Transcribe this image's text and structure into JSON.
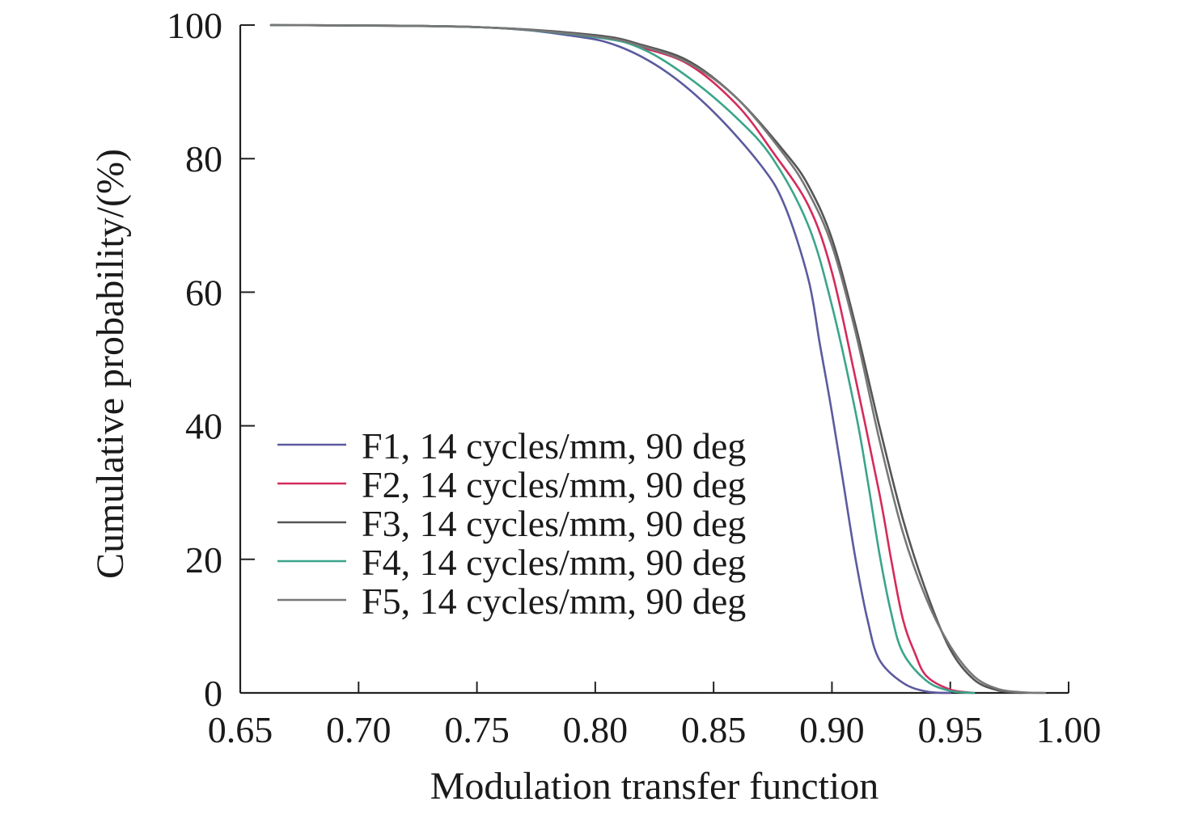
{
  "chart_data": {
    "type": "line",
    "title": "",
    "xlabel": "Modulation transfer function",
    "ylabel": "Cumulative probability/(%)",
    "xlim": [
      0.65,
      1.0
    ],
    "ylim": [
      0,
      100
    ],
    "x_ticks": [
      "0.65",
      "0.70",
      "0.75",
      "0.80",
      "0.85",
      "0.90",
      "0.95",
      "1.00"
    ],
    "y_ticks": [
      "0",
      "20",
      "40",
      "60",
      "80",
      "100"
    ],
    "grid": false,
    "legend_position": "center-left",
    "series": [
      {
        "name": "F1, 14 cycles/mm, 90 deg",
        "color": "#5c5a9e",
        "points": [
          [
            0.663,
            100
          ],
          [
            0.75,
            99.7
          ],
          [
            0.79,
            98.4
          ],
          [
            0.81,
            96.8
          ],
          [
            0.83,
            93.0
          ],
          [
            0.85,
            87.0
          ],
          [
            0.87,
            79.0
          ],
          [
            0.88,
            73.0
          ],
          [
            0.89,
            62.0
          ],
          [
            0.895,
            52.0
          ],
          [
            0.9,
            42.0
          ],
          [
            0.905,
            31.0
          ],
          [
            0.91,
            20.0
          ],
          [
            0.915,
            11.0
          ],
          [
            0.92,
            5.0
          ],
          [
            0.93,
            1.5
          ],
          [
            0.94,
            0.2
          ],
          [
            0.95,
            0
          ]
        ]
      },
      {
        "name": "F2, 14 cycles/mm, 90 deg",
        "color": "#d42b5c",
        "points": [
          [
            0.663,
            100
          ],
          [
            0.75,
            99.7
          ],
          [
            0.8,
            98.3
          ],
          [
            0.82,
            96.6
          ],
          [
            0.84,
            94.0
          ],
          [
            0.86,
            88.0
          ],
          [
            0.875,
            81.0
          ],
          [
            0.89,
            73.0
          ],
          [
            0.9,
            63.0
          ],
          [
            0.91,
            47.0
          ],
          [
            0.92,
            30.0
          ],
          [
            0.925,
            20.0
          ],
          [
            0.93,
            11.0
          ],
          [
            0.935,
            6.0
          ],
          [
            0.94,
            2.5
          ],
          [
            0.95,
            0.5
          ],
          [
            0.96,
            0
          ]
        ]
      },
      {
        "name": "F3, 14 cycles/mm, 90 deg",
        "color": "#555555",
        "points": [
          [
            0.663,
            100
          ],
          [
            0.75,
            99.7
          ],
          [
            0.8,
            98.5
          ],
          [
            0.82,
            97.0
          ],
          [
            0.84,
            94.5
          ],
          [
            0.86,
            89.0
          ],
          [
            0.88,
            81.0
          ],
          [
            0.89,
            76.0
          ],
          [
            0.9,
            68.0
          ],
          [
            0.91,
            55.0
          ],
          [
            0.92,
            40.0
          ],
          [
            0.93,
            26.0
          ],
          [
            0.94,
            15.0
          ],
          [
            0.95,
            6.5
          ],
          [
            0.96,
            2.0
          ],
          [
            0.97,
            0.4
          ],
          [
            0.98,
            0
          ]
        ]
      },
      {
        "name": "F4, 14 cycles/mm, 90 deg",
        "color": "#3aa58a",
        "points": [
          [
            0.663,
            100
          ],
          [
            0.75,
            99.7
          ],
          [
            0.8,
            98.2
          ],
          [
            0.82,
            96.4
          ],
          [
            0.84,
            92.0
          ],
          [
            0.86,
            86.0
          ],
          [
            0.875,
            80.0
          ],
          [
            0.89,
            70.0
          ],
          [
            0.9,
            58.0
          ],
          [
            0.91,
            42.0
          ],
          [
            0.915,
            32.0
          ],
          [
            0.92,
            21.0
          ],
          [
            0.925,
            12.0
          ],
          [
            0.93,
            6.0
          ],
          [
            0.94,
            1.8
          ],
          [
            0.95,
            0.3
          ],
          [
            0.96,
            0
          ]
        ]
      },
      {
        "name": "F5, 14 cycles/mm, 90 deg",
        "color": "#777777",
        "points": [
          [
            0.663,
            100
          ],
          [
            0.75,
            99.7
          ],
          [
            0.8,
            98.3
          ],
          [
            0.82,
            96.8
          ],
          [
            0.84,
            94.2
          ],
          [
            0.86,
            89.0
          ],
          [
            0.88,
            80.5
          ],
          [
            0.89,
            75.0
          ],
          [
            0.9,
            67.0
          ],
          [
            0.91,
            54.0
          ],
          [
            0.92,
            38.0
          ],
          [
            0.93,
            24.0
          ],
          [
            0.94,
            14.0
          ],
          [
            0.95,
            7.0
          ],
          [
            0.96,
            2.5
          ],
          [
            0.97,
            0.6
          ],
          [
            0.98,
            0.1
          ],
          [
            0.99,
            0
          ]
        ]
      }
    ]
  }
}
